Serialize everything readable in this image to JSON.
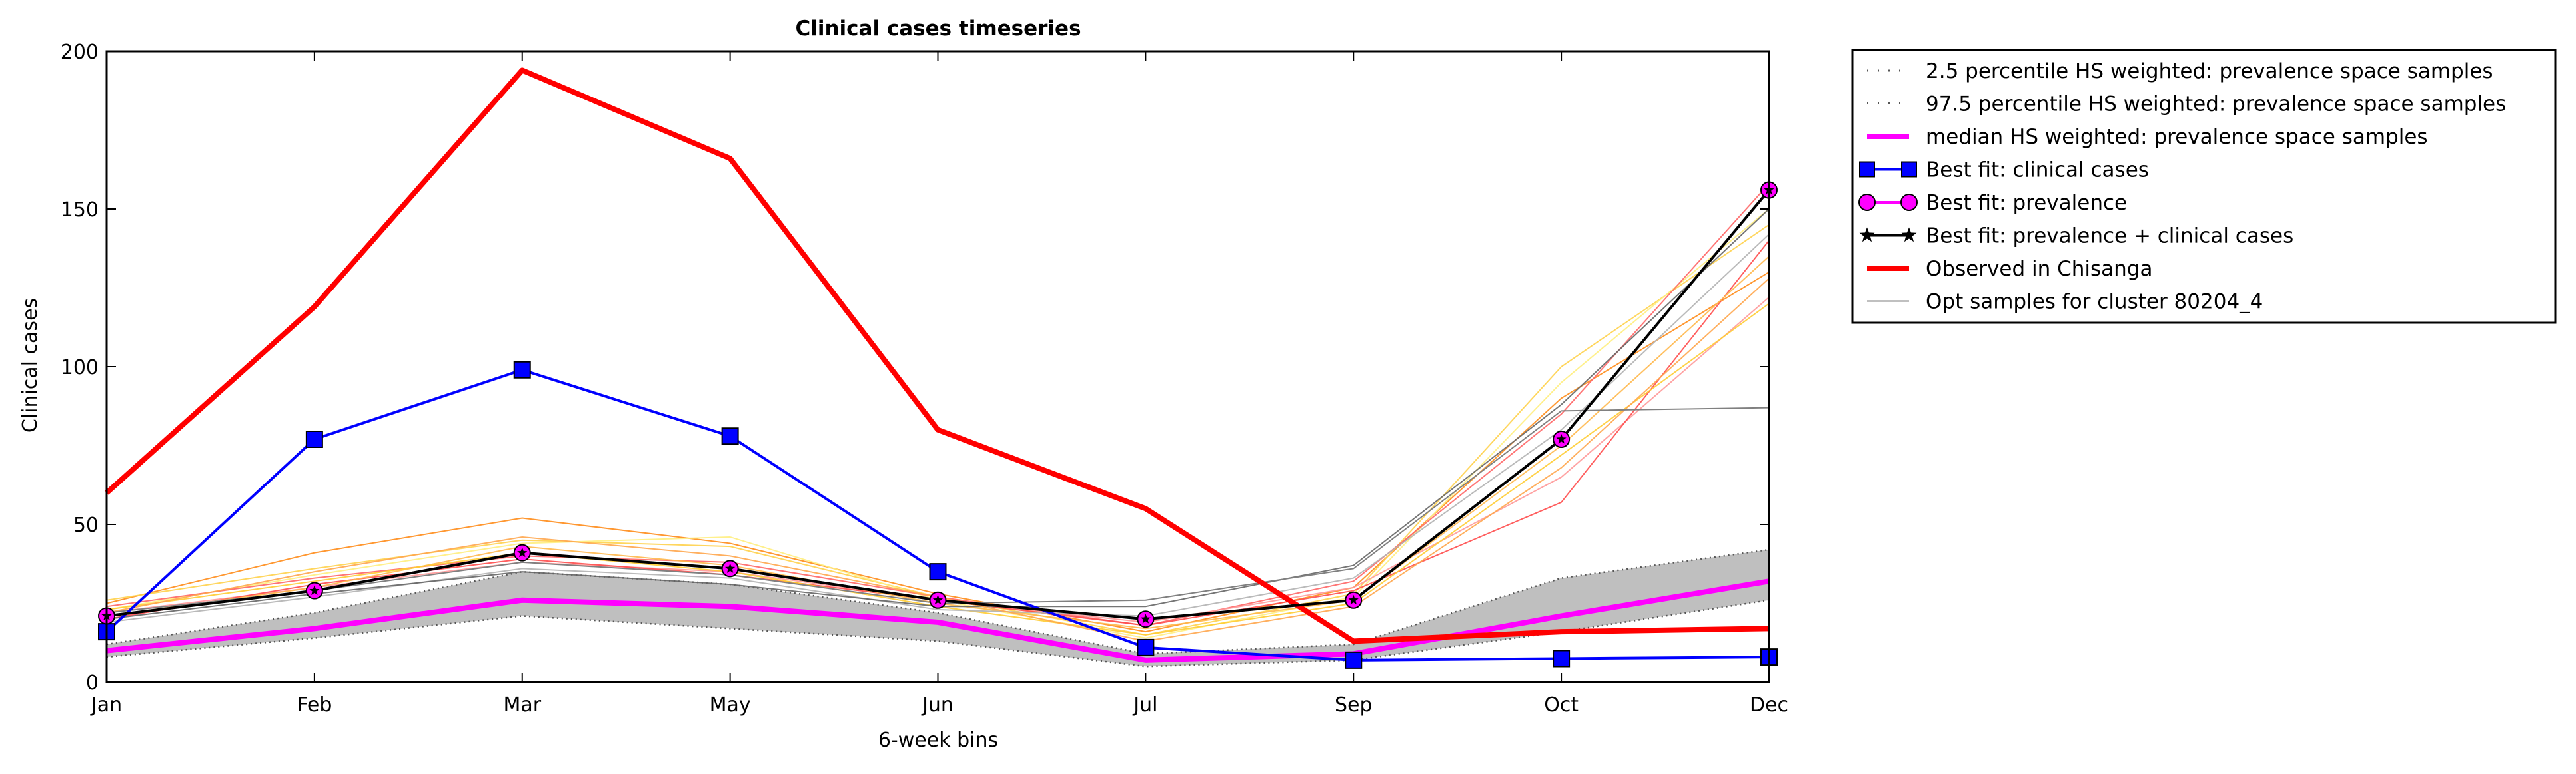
{
  "chart_data": {
    "type": "line",
    "title": "Clinical cases timeseries",
    "xlabel": "6-week bins",
    "ylabel": "Clinical cases",
    "categories": [
      "Jan",
      "Feb",
      "Mar",
      "May",
      "Jun",
      "Jul",
      "Sep",
      "Oct",
      "Dec"
    ],
    "ylim": [
      0,
      200
    ],
    "yticks": [
      0,
      50,
      100,
      150,
      200
    ],
    "grid": false,
    "legend_position": "outside-right-top",
    "band": {
      "lower_name": "2.5 percentile HS weighted: prevalence space samples",
      "upper_name": "97.5 percentile HS weighted: prevalence space samples",
      "lower": [
        8,
        14,
        21,
        17,
        13,
        5,
        7,
        16,
        26
      ],
      "upper": [
        12,
        22,
        35,
        31,
        22,
        9,
        12,
        33,
        42
      ],
      "fill_color": "#bfbfbf",
      "line_color": "#555555"
    },
    "series": [
      {
        "name": "median HS weighted: prevalence space samples",
        "color": "#ff00ff",
        "style": "thick",
        "values": [
          10,
          17,
          26,
          24,
          19,
          7,
          9,
          21,
          32
        ]
      },
      {
        "name": "Best fit: clinical cases",
        "color": "#0000ff",
        "marker": "square",
        "values": [
          16,
          77,
          99,
          78,
          35,
          11,
          7,
          7.5,
          8
        ]
      },
      {
        "name": "Best fit: prevalence",
        "color": "#ff00ff",
        "marker": "circle",
        "values": [
          21,
          29,
          41,
          36,
          26,
          20,
          26,
          77,
          156
        ]
      },
      {
        "name": "Best fit: prevalence + clinical cases",
        "color": "#000000",
        "marker": "star",
        "values": [
          21,
          29,
          41,
          36,
          26,
          20,
          26,
          77,
          156
        ]
      },
      {
        "name": "Observed in Chisanga",
        "color": "#ff0000",
        "style": "thick",
        "values": [
          60,
          119,
          194,
          166,
          80,
          55,
          13,
          16,
          17
        ]
      },
      {
        "name": "Opt samples for cluster 80204_4",
        "color": "#808080",
        "style": "thin",
        "values": [
          22,
          29,
          38,
          34,
          25,
          26,
          36,
          86,
          87
        ]
      }
    ],
    "sample_lines": [
      {
        "color": "#ff8c1a",
        "values": [
          25,
          41,
          52,
          44,
          28,
          16,
          30,
          90,
          130
        ]
      },
      {
        "color": "#ffd24d",
        "values": [
          26,
          36,
          45,
          43,
          27,
          15,
          28,
          100,
          145
        ]
      },
      {
        "color": "#ffee80",
        "values": [
          23,
          34,
          44,
          46,
          26,
          14,
          27,
          95,
          150
        ]
      },
      {
        "color": "#ff6666",
        "values": [
          24,
          33,
          40,
          38,
          27,
          18,
          32,
          85,
          158
        ]
      },
      {
        "color": "#ff9999",
        "values": [
          22,
          30,
          38,
          35,
          26,
          19,
          30,
          65,
          122
        ]
      },
      {
        "color": "#ff4d4d",
        "values": [
          20,
          31,
          39,
          34,
          26,
          18,
          29,
          57,
          140
        ]
      },
      {
        "color": "#ffb84d",
        "values": [
          21,
          30,
          43,
          37,
          25,
          17,
          26,
          75,
          135
        ]
      },
      {
        "color": "#ffcc33",
        "values": [
          23,
          32,
          41,
          35,
          24,
          15,
          25,
          72,
          120
        ]
      },
      {
        "color": "#b3b3b3",
        "values": [
          19,
          27,
          36,
          33,
          23,
          21,
          33,
          80,
          142
        ]
      },
      {
        "color": "#666666",
        "values": [
          20,
          28,
          35,
          31,
          24,
          24,
          37,
          88,
          150
        ]
      },
      {
        "color": "#ffa64d",
        "values": [
          22,
          35,
          46,
          40,
          27,
          13,
          24,
          68,
          128
        ]
      }
    ]
  }
}
